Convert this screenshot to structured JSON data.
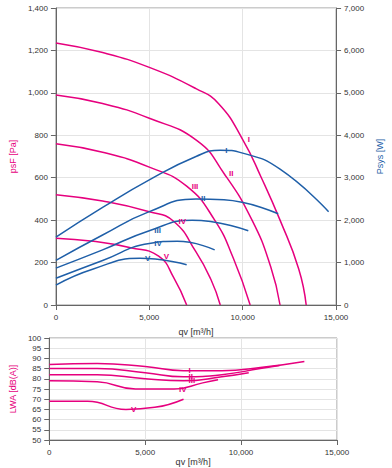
{
  "chart_data": [
    {
      "type": "line",
      "xlabel": "qv [m³/h]",
      "ylabel": "psF [Pa]",
      "y2label": "Psys [W]",
      "xlim": [
        0,
        15000
      ],
      "xticks": [
        0,
        {
          "value": 5000,
          "label": "5,000"
        },
        {
          "value": 10000,
          "label": "10,000"
        },
        {
          "value": 15000,
          "label": "15,000"
        }
      ],
      "ylim": [
        0,
        1400
      ],
      "yticks": [
        0,
        200,
        400,
        600,
        800,
        {
          "value": 1000,
          "label": "1,000"
        },
        {
          "value": 1200,
          "label": "1,200"
        },
        {
          "value": 1400,
          "label": "1,400"
        }
      ],
      "y2lim": [
        0,
        7000
      ],
      "y2ticks": [
        0,
        {
          "value": 1000,
          "label": "1,000"
        },
        {
          "value": 2000,
          "label": "2,000"
        },
        {
          "value": 3000,
          "label": "3,000"
        },
        {
          "value": 4000,
          "label": "4,000"
        },
        {
          "value": 5000,
          "label": "5,000"
        },
        {
          "value": 6000,
          "label": "6,000"
        },
        {
          "value": 7000,
          "label": "7,000"
        }
      ],
      "grid": true,
      "series": [
        {
          "name": "I",
          "color": "#e6007e",
          "x": [
            0,
            2500,
            5000,
            7500,
            8700,
            10000,
            11000,
            12000,
            13000,
            13400
          ],
          "values": [
            1235,
            1190,
            1120,
            1020,
            950,
            780,
            600,
            400,
            170,
            0
          ]
        },
        {
          "name": "II",
          "color": "#e6007e",
          "x": [
            0,
            2500,
            5000,
            7550,
            9000,
            10500,
            11500,
            12000
          ],
          "values": [
            990,
            950,
            880,
            775,
            620,
            400,
            180,
            0
          ]
        },
        {
          "name": "III",
          "color": "#e6007e",
          "x": [
            0,
            2500,
            5000,
            7000,
            8500,
            9500,
            10400
          ],
          "values": [
            760,
            720,
            650,
            560,
            400,
            220,
            0
          ]
        },
        {
          "name": "IV",
          "color": "#e6007e",
          "x": [
            0,
            2500,
            5000,
            6300,
            7500,
            8300,
            8800
          ],
          "values": [
            520,
            490,
            440,
            395,
            250,
            120,
            0
          ]
        },
        {
          "name": "V",
          "color": "#e6007e",
          "x": [
            0,
            2000,
            4000,
            5500,
            6300,
            7000
          ],
          "values": [
            315,
            300,
            270,
            230,
            130,
            0
          ]
        },
        {
          "name": "I",
          "color": "#1f5fa8",
          "axis": "y2",
          "x": [
            0,
            2500,
            5000,
            7500,
            8800,
            10000,
            12000,
            14600
          ],
          "values": [
            1600,
            2300,
            2950,
            3500,
            3650,
            3580,
            3200,
            2200
          ]
        },
        {
          "name": "II",
          "color": "#1f5fa8",
          "axis": "y2",
          "x": [
            0,
            2500,
            5000,
            7500,
            9000,
            11900
          ],
          "values": [
            1050,
            1650,
            2200,
            2500,
            2480,
            2150
          ]
        },
        {
          "name": "III",
          "color": "#1f5fa8",
          "axis": "y2",
          "x": [
            0,
            2500,
            5000,
            7300,
            10300
          ],
          "values": [
            870,
            1300,
            1750,
            2000,
            1750
          ]
        },
        {
          "name": "IV",
          "color": "#1f5fa8",
          "axis": "y2",
          "x": [
            0,
            2500,
            5000,
            6500,
            8500
          ],
          "values": [
            630,
            1050,
            1450,
            1500,
            1300
          ]
        },
        {
          "name": "V",
          "color": "#1f5fa8",
          "axis": "y2",
          "x": [
            0,
            2000,
            4500,
            7000
          ],
          "values": [
            470,
            850,
            1100,
            950
          ]
        }
      ]
    },
    {
      "type": "line",
      "xlabel": "qv [m³/h]",
      "ylabel": "LWA [dB(A)]",
      "xlim": [
        0,
        15000
      ],
      "xticks": [
        0,
        {
          "value": 5000,
          "label": "5,000"
        },
        {
          "value": 10000,
          "label": "10,000"
        },
        {
          "value": 15000,
          "label": "15,000"
        }
      ],
      "ylim": [
        50,
        100
      ],
      "yticks": [
        50,
        55,
        60,
        65,
        70,
        75,
        80,
        85,
        90,
        95,
        100
      ],
      "grid": true,
      "series": [
        {
          "name": "I",
          "color": "#e6007e",
          "x": [
            0,
            2500,
            5000,
            7000,
            9000,
            11000,
            13300
          ],
          "values": [
            87,
            87.5,
            86,
            84,
            84,
            85.5,
            88.5
          ]
        },
        {
          "name": "II",
          "color": "#e6007e",
          "x": [
            0,
            2500,
            5000,
            7000,
            9000,
            11000,
            12000
          ],
          "values": [
            85,
            85,
            83,
            81,
            82,
            85,
            86.5
          ]
        },
        {
          "name": "III",
          "color": "#e6007e",
          "x": [
            0,
            2500,
            5000,
            7000,
            9000,
            10400
          ],
          "values": [
            82,
            82,
            80,
            79,
            81,
            83
          ]
        },
        {
          "name": "IV",
          "color": "#e6007e",
          "x": [
            0,
            2500,
            4500,
            6500,
            8000,
            8800
          ],
          "values": [
            79,
            78.5,
            75,
            75,
            78,
            79.5
          ]
        },
        {
          "name": "V",
          "color": "#e6007e",
          "x": [
            0,
            2000,
            4000,
            5500,
            7000
          ],
          "values": [
            69,
            69,
            65,
            66,
            70
          ]
        }
      ]
    }
  ]
}
